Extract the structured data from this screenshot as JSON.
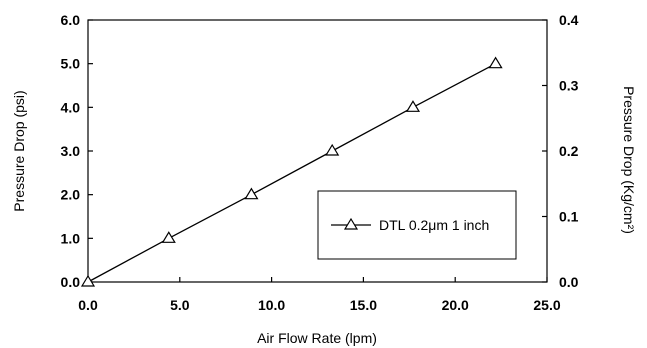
{
  "chart_data": {
    "type": "line",
    "title": "",
    "xlabel": "Air Flow Rate (lpm)",
    "ylabel": "Pressure Drop (psi)",
    "ylabel_right": "Pressure Drop (Kg/cm²)",
    "xlim": [
      0,
      25
    ],
    "ylim": [
      0,
      6
    ],
    "ylim_right": [
      0,
      0.4
    ],
    "x_ticks": [
      "0.0",
      "5.0",
      "10.0",
      "15.0",
      "20.0",
      "25.0"
    ],
    "y_ticks": [
      "0.0",
      "1.0",
      "2.0",
      "3.0",
      "4.0",
      "5.0",
      "6.0"
    ],
    "y_ticks_right": [
      "0.0",
      "0.1",
      "0.2",
      "0.3",
      "0.4"
    ],
    "grid": false,
    "legend_position": "bottom-right",
    "series": [
      {
        "name": "DTL 0.2μm 1 inch",
        "marker": "triangle",
        "color": "#000000",
        "x": [
          0.0,
          4.4,
          8.9,
          13.3,
          17.7,
          22.2
        ],
        "y": [
          0.0,
          1.0,
          2.0,
          3.0,
          4.0,
          5.0
        ]
      }
    ]
  }
}
